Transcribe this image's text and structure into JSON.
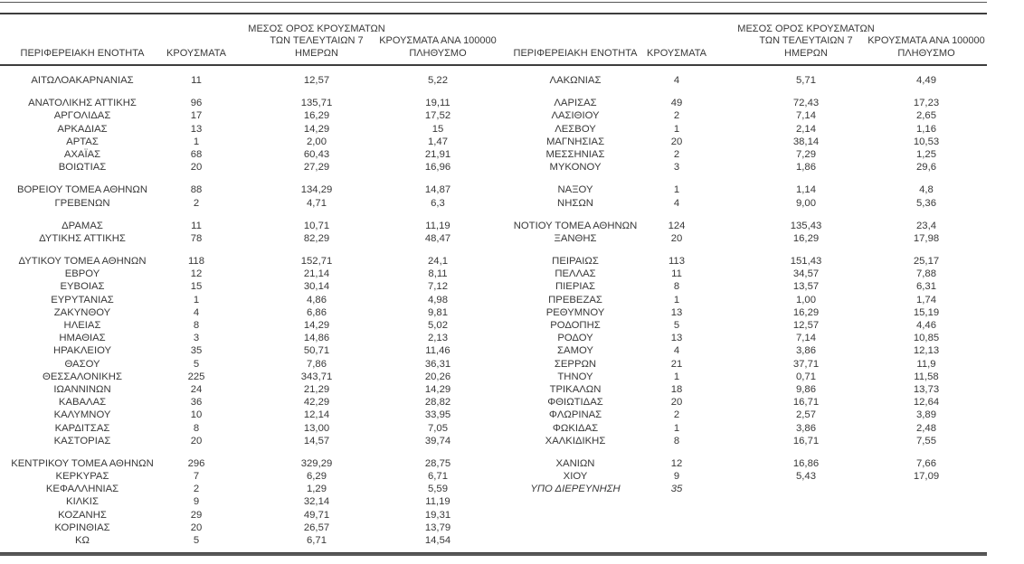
{
  "colors": {
    "background": "#ffffff",
    "text": "#383838",
    "rule": "#3d3d3d"
  },
  "table": {
    "column_headers": [
      "ΠΕΡΙΦΕΡΕΙΑΚΗ ΕΝΟΤΗΤΑ",
      "ΚΡΟΥΣΜΑΤΑ",
      "ΜΕΣΟΣ ΟΡΟΣ ΚΡΟΥΣΜΑΤΩΝ\nΤΩΝ ΤΕΛΕΥΤΑΙΩΝ 7\nΗΜΕΡΩΝ",
      "ΚΡΟΥΣΜΑΤΑ ΑΝΑ 100000\nΠΛΗΘΥΣΜΟ"
    ],
    "left": {
      "groups": [
        [
          {
            "name": "ΑΙΤΩΛΟΑΚΑΡΝΑΝΙΑΣ",
            "cases": "11",
            "avg7": "12,57",
            "per100k": "5,22"
          }
        ],
        [
          {
            "name": "ΑΝΑΤΟΛΙΚΗΣ ΑΤΤΙΚΗΣ",
            "cases": "96",
            "avg7": "135,71",
            "per100k": "19,11"
          },
          {
            "name": "ΑΡΓΟΛΙΔΑΣ",
            "cases": "17",
            "avg7": "16,29",
            "per100k": "17,52"
          },
          {
            "name": "ΑΡΚΑΔΙΑΣ",
            "cases": "13",
            "avg7": "14,29",
            "per100k": "15"
          },
          {
            "name": "ΑΡΤΑΣ",
            "cases": "1",
            "avg7": "2,00",
            "per100k": "1,47"
          },
          {
            "name": "ΑΧΑΪΑΣ",
            "cases": "68",
            "avg7": "60,43",
            "per100k": "21,91"
          },
          {
            "name": "ΒΟΙΩΤΙΑΣ",
            "cases": "20",
            "avg7": "27,29",
            "per100k": "16,96"
          }
        ],
        [
          {
            "name": "ΒΟΡΕΙΟΥ ΤΟΜΕΑ ΑΘΗΝΩΝ",
            "cases": "88",
            "avg7": "134,29",
            "per100k": "14,87"
          },
          {
            "name": "ΓΡΕΒΕΝΩΝ",
            "cases": "2",
            "avg7": "4,71",
            "per100k": "6,3"
          }
        ],
        [
          {
            "name": "ΔΡΑΜΑΣ",
            "cases": "11",
            "avg7": "10,71",
            "per100k": "11,19"
          },
          {
            "name": "ΔΥΤΙΚΗΣ ΑΤΤΙΚΗΣ",
            "cases": "78",
            "avg7": "82,29",
            "per100k": "48,47"
          }
        ],
        [
          {
            "name": "ΔΥΤΙΚΟΥ ΤΟΜΕΑ ΑΘΗΝΩΝ",
            "cases": "118",
            "avg7": "152,71",
            "per100k": "24,1"
          },
          {
            "name": "ΕΒΡΟΥ",
            "cases": "12",
            "avg7": "21,14",
            "per100k": "8,11"
          },
          {
            "name": "ΕΥΒΟΙΑΣ",
            "cases": "15",
            "avg7": "30,14",
            "per100k": "7,12"
          },
          {
            "name": "ΕΥΡΥΤΑΝΙΑΣ",
            "cases": "1",
            "avg7": "4,86",
            "per100k": "4,98"
          },
          {
            "name": "ΖΑΚΥΝΘΟΥ",
            "cases": "4",
            "avg7": "6,86",
            "per100k": "9,81"
          },
          {
            "name": "ΗΛΕΙΑΣ",
            "cases": "8",
            "avg7": "14,29",
            "per100k": "5,02"
          },
          {
            "name": "ΗΜΑΘΙΑΣ",
            "cases": "3",
            "avg7": "14,86",
            "per100k": "2,13"
          },
          {
            "name": "ΗΡΑΚΛΕΙΟΥ",
            "cases": "35",
            "avg7": "50,71",
            "per100k": "11,46"
          },
          {
            "name": "ΘΑΣΟΥ",
            "cases": "5",
            "avg7": "7,86",
            "per100k": "36,31"
          },
          {
            "name": "ΘΕΣΣΑΛΟΝΙΚΗΣ",
            "cases": "225",
            "avg7": "343,71",
            "per100k": "20,26"
          },
          {
            "name": "ΙΩΑΝΝΙΝΩΝ",
            "cases": "24",
            "avg7": "21,29",
            "per100k": "14,29"
          },
          {
            "name": "ΚΑΒΑΛΑΣ",
            "cases": "36",
            "avg7": "42,29",
            "per100k": "28,82"
          },
          {
            "name": "ΚΑΛΥΜΝΟΥ",
            "cases": "10",
            "avg7": "12,14",
            "per100k": "33,95"
          },
          {
            "name": "ΚΑΡΔΙΤΣΑΣ",
            "cases": "8",
            "avg7": "13,00",
            "per100k": "7,05"
          },
          {
            "name": "ΚΑΣΤΟΡΙΑΣ",
            "cases": "20",
            "avg7": "14,57",
            "per100k": "39,74"
          }
        ],
        [
          {
            "name": "ΚΕΝΤΡΙΚΟΥ ΤΟΜΕΑ ΑΘΗΝΩΝ",
            "cases": "296",
            "avg7": "329,29",
            "per100k": "28,75"
          },
          {
            "name": "ΚΕΡΚΥΡΑΣ",
            "cases": "7",
            "avg7": "6,29",
            "per100k": "6,71"
          },
          {
            "name": "ΚΕΦΑΛΛΗΝΙΑΣ",
            "cases": "2",
            "avg7": "1,29",
            "per100k": "5,59"
          },
          {
            "name": "ΚΙΛΚΙΣ",
            "cases": "9",
            "avg7": "32,14",
            "per100k": "11,19"
          },
          {
            "name": "ΚΟΖΑΝΗΣ",
            "cases": "29",
            "avg7": "49,71",
            "per100k": "19,31"
          },
          {
            "name": "ΚΟΡΙΝΘΙΑΣ",
            "cases": "20",
            "avg7": "26,57",
            "per100k": "13,79"
          },
          {
            "name": "ΚΩ",
            "cases": "5",
            "avg7": "6,71",
            "per100k": "14,54"
          }
        ]
      ]
    },
    "right": {
      "groups": [
        [
          {
            "name": "ΛΑΚΩΝΙΑΣ",
            "cases": "4",
            "avg7": "5,71",
            "per100k": "4,49"
          }
        ],
        [
          {
            "name": "ΛΑΡΙΣΑΣ",
            "cases": "49",
            "avg7": "72,43",
            "per100k": "17,23"
          },
          {
            "name": "ΛΑΣΙΘΙΟΥ",
            "cases": "2",
            "avg7": "7,14",
            "per100k": "2,65"
          },
          {
            "name": "ΛΕΣΒΟΥ",
            "cases": "1",
            "avg7": "2,14",
            "per100k": "1,16"
          },
          {
            "name": "ΜΑΓΝΗΣΙΑΣ",
            "cases": "20",
            "avg7": "38,14",
            "per100k": "10,53"
          },
          {
            "name": "ΜΕΣΣΗΝΙΑΣ",
            "cases": "2",
            "avg7": "7,29",
            "per100k": "1,25"
          },
          {
            "name": "ΜΥΚΟΝΟΥ",
            "cases": "3",
            "avg7": "1,86",
            "per100k": "29,6"
          }
        ],
        [
          {
            "name": "ΝΑΞΟΥ",
            "cases": "1",
            "avg7": "1,14",
            "per100k": "4,8"
          },
          {
            "name": "ΝΗΣΩΝ",
            "cases": "4",
            "avg7": "9,00",
            "per100k": "5,36"
          }
        ],
        [
          {
            "name": "ΝΟΤΙΟΥ ΤΟΜΕΑ ΑΘΗΝΩΝ",
            "cases": "124",
            "avg7": "135,43",
            "per100k": "23,4"
          },
          {
            "name": "ΞΑΝΘΗΣ",
            "cases": "20",
            "avg7": "16,29",
            "per100k": "17,98"
          }
        ],
        [
          {
            "name": "ΠΕΙΡΑΙΩΣ",
            "cases": "113",
            "avg7": "151,43",
            "per100k": "25,17"
          },
          {
            "name": "ΠΕΛΛΑΣ",
            "cases": "11",
            "avg7": "34,57",
            "per100k": "7,88"
          },
          {
            "name": "ΠΙΕΡΙΑΣ",
            "cases": "8",
            "avg7": "13,57",
            "per100k": "6,31"
          },
          {
            "name": "ΠΡΕΒΕΖΑΣ",
            "cases": "1",
            "avg7": "1,00",
            "per100k": "1,74"
          },
          {
            "name": "ΡΕΘΥΜΝΟΥ",
            "cases": "13",
            "avg7": "16,29",
            "per100k": "15,19"
          },
          {
            "name": "ΡΟΔΟΠΗΣ",
            "cases": "5",
            "avg7": "12,57",
            "per100k": "4,46"
          },
          {
            "name": "ΡΟΔΟΥ",
            "cases": "13",
            "avg7": "7,14",
            "per100k": "10,85"
          },
          {
            "name": "ΣΑΜΟΥ",
            "cases": "4",
            "avg7": "3,86",
            "per100k": "12,13"
          },
          {
            "name": "ΣΕΡΡΩΝ",
            "cases": "21",
            "avg7": "37,71",
            "per100k": "11,9"
          },
          {
            "name": "ΤΗΝΟΥ",
            "cases": "1",
            "avg7": "0,71",
            "per100k": "11,58"
          },
          {
            "name": "ΤΡΙΚΑΛΩΝ",
            "cases": "18",
            "avg7": "9,86",
            "per100k": "13,73"
          },
          {
            "name": "ΦΘΙΩΤΙΔΑΣ",
            "cases": "20",
            "avg7": "16,71",
            "per100k": "12,64"
          },
          {
            "name": "ΦΛΩΡΙΝΑΣ",
            "cases": "2",
            "avg7": "2,57",
            "per100k": "3,89"
          },
          {
            "name": "ΦΩΚΙΔΑΣ",
            "cases": "1",
            "avg7": "3,86",
            "per100k": "2,48"
          },
          {
            "name": "ΧΑΛΚΙΔΙΚΗΣ",
            "cases": "8",
            "avg7": "16,71",
            "per100k": "7,55"
          }
        ],
        [
          {
            "name": "ΧΑΝΙΩΝ",
            "cases": "12",
            "avg7": "16,86",
            "per100k": "7,66"
          },
          {
            "name": "ΧΙΟΥ",
            "cases": "9",
            "avg7": "5,43",
            "per100k": "17,09"
          },
          {
            "name": "ΥΠΟ ΔΙΕΡΕΥΝΗΣΗ",
            "cases": "35",
            "avg7": "",
            "per100k": "",
            "italic": true
          }
        ]
      ]
    }
  }
}
